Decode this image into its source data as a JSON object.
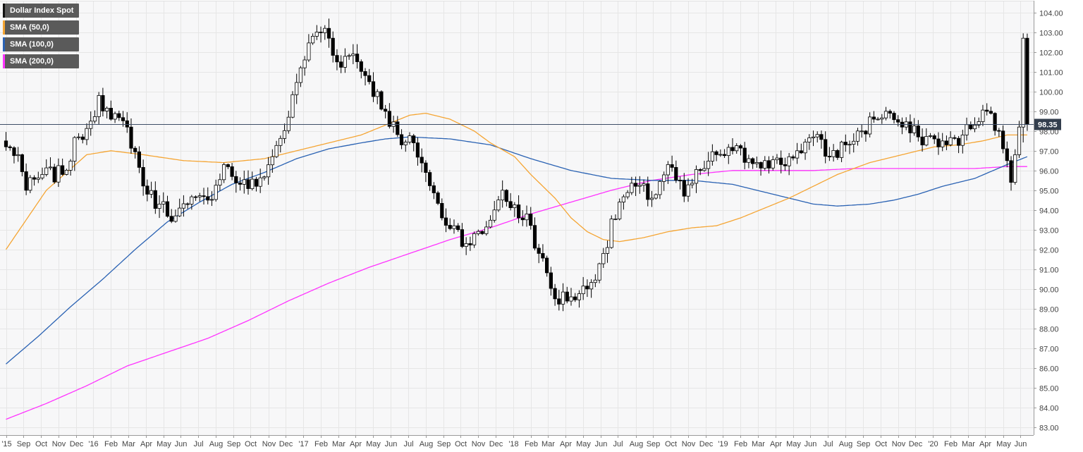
{
  "chart_data": {
    "type": "candlestick",
    "title": "",
    "ylim": [
      82.6,
      104.6
    ],
    "y_ticks": [
      "83.00",
      "84.00",
      "85.00",
      "86.00",
      "87.00",
      "88.00",
      "89.00",
      "90.00",
      "91.00",
      "92.00",
      "93.00",
      "94.00",
      "95.00",
      "96.00",
      "97.00",
      "98.00",
      "99.00",
      "100.00",
      "101.00",
      "102.00",
      "103.00",
      "104.00"
    ],
    "x_tick_labels": [
      "'15",
      "Sep",
      "Oct",
      "Nov",
      "Dec",
      "'16",
      "Feb",
      "Mar",
      "Apr",
      "May",
      "Jun",
      "Jul",
      "Aug",
      "Sep",
      "Oct",
      "Nov",
      "Dec",
      "'17",
      "Feb",
      "Mar",
      "Apr",
      "May",
      "Jun",
      "Jul",
      "Aug",
      "Sep",
      "Oct",
      "Nov",
      "Dec",
      "'18",
      "Feb",
      "Mar",
      "Apr",
      "May",
      "Jun",
      "Jul",
      "Aug",
      "Sep",
      "Oct",
      "Nov",
      "Dec",
      "'19",
      "Feb",
      "Mar",
      "Apr",
      "May",
      "Jun",
      "Jul",
      "Aug",
      "Sep",
      "Oct",
      "Nov",
      "Dec",
      "'20",
      "Feb",
      "Mar",
      "Apr",
      "May",
      "Jun"
    ],
    "x_tick_index": [
      0,
      4.3,
      8.6,
      13,
      17.3,
      21.6,
      26,
      30.3,
      34.6,
      39,
      43.3,
      47.6,
      52,
      56.3,
      60.6,
      65,
      69.3,
      73.6,
      78,
      82.3,
      86.6,
      91,
      95.3,
      99.6,
      104,
      108.3,
      112.6,
      117,
      121.3,
      125.6,
      130,
      134.3,
      138.6,
      143,
      147.3,
      151.6,
      156,
      160.3,
      164.6,
      169,
      173.3,
      177.6,
      182,
      186.3,
      190.6,
      195,
      199.3,
      203.6,
      208,
      212.3,
      216.6,
      221,
      225.3,
      229.6,
      234,
      238.3,
      242.6,
      247,
      251.3
    ],
    "bar_count": 256,
    "current_price": "98.35",
    "current_value": 98.35,
    "colors": {
      "up_fill": "#ffffff",
      "down_fill": "#000000",
      "candle_outline": "#000000",
      "sma50": "#f5a533",
      "sma100": "#2a62b3",
      "sma200": "#ff33ff",
      "price_line": "#3d4d66",
      "price_label_bg": "#333e4d",
      "grid": "#e6e6e6",
      "plot_bg": "#f7f7f8"
    },
    "legend": [
      {
        "label": "Dollar Index Spot",
        "color": "#111111"
      },
      {
        "label": "SMA (50,0)",
        "color": "#f5a533"
      },
      {
        "label": "SMA (100,0)",
        "color": "#2a62b3"
      },
      {
        "label": "SMA (200,0)",
        "color": "#ff33ff"
      }
    ],
    "price_anchors": [
      [
        0,
        97.2
      ],
      [
        3,
        96.8
      ],
      [
        5,
        95.0
      ],
      [
        9,
        95.8
      ],
      [
        14,
        95.8
      ],
      [
        18,
        97.7
      ],
      [
        21,
        98.5
      ],
      [
        23,
        99.8
      ],
      [
        26,
        98.6
      ],
      [
        30,
        98.2
      ],
      [
        35,
        94.8
      ],
      [
        38,
        94.3
      ],
      [
        42,
        93.7
      ],
      [
        45,
        94.3
      ],
      [
        50,
        94.5
      ],
      [
        54,
        96.3
      ],
      [
        58,
        95.3
      ],
      [
        62,
        95.2
      ],
      [
        66,
        96.7
      ],
      [
        70,
        98.7
      ],
      [
        73,
        101.2
      ],
      [
        76,
        102.8
      ],
      [
        79,
        103.2
      ],
      [
        82,
        101.5
      ],
      [
        86,
        101.9
      ],
      [
        90,
        100.5
      ],
      [
        94,
        99.0
      ],
      [
        98,
        97.3
      ],
      [
        101,
        97.4
      ],
      [
        104,
        95.9
      ],
      [
        108,
        93.6
      ],
      [
        111,
        93.2
      ],
      [
        114,
        92.3
      ],
      [
        118,
        92.8
      ],
      [
        121,
        94.0
      ],
      [
        123,
        95.0
      ],
      [
        127,
        93.6
      ],
      [
        129,
        93.8
      ],
      [
        132,
        91.8
      ],
      [
        136,
        89.5
      ],
      [
        140,
        89.6
      ],
      [
        144,
        90.0
      ],
      [
        148,
        91.8
      ],
      [
        152,
        94.4
      ],
      [
        156,
        95.2
      ],
      [
        160,
        94.6
      ],
      [
        164,
        96.3
      ],
      [
        168,
        94.7
      ],
      [
        172,
        96.0
      ],
      [
        176,
        96.8
      ],
      [
        180,
        97.0
      ],
      [
        184,
        96.6
      ],
      [
        188,
        96.5
      ],
      [
        192,
        96.3
      ],
      [
        196,
        97.0
      ],
      [
        200,
        97.7
      ],
      [
        204,
        96.7
      ],
      [
        208,
        97.3
      ],
      [
        212,
        98.0
      ],
      [
        215,
        98.6
      ],
      [
        218,
        99.0
      ],
      [
        222,
        98.2
      ],
      [
        226,
        97.7
      ],
      [
        230,
        97.6
      ],
      [
        233,
        97.3
      ],
      [
        237,
        97.8
      ],
      [
        240,
        98.3
      ],
      [
        243,
        99.0
      ],
      [
        246,
        98.0
      ],
      [
        247,
        97.1
      ],
      [
        248,
        96.5
      ],
      [
        249,
        95.4
      ],
      [
        250,
        96.8
      ],
      [
        251,
        98.2
      ],
      [
        252,
        102.7
      ],
      [
        253,
        98.3
      ]
    ],
    "sma50_anchors": [
      [
        0,
        92.0
      ],
      [
        10,
        95.0
      ],
      [
        20,
        96.8
      ],
      [
        26,
        97.0
      ],
      [
        34,
        96.8
      ],
      [
        44,
        96.5
      ],
      [
        54,
        96.4
      ],
      [
        64,
        96.6
      ],
      [
        72,
        97.0
      ],
      [
        80,
        97.4
      ],
      [
        88,
        97.8
      ],
      [
        94,
        98.3
      ],
      [
        100,
        98.8
      ],
      [
        104,
        98.9
      ],
      [
        110,
        98.6
      ],
      [
        116,
        98.0
      ],
      [
        120,
        97.4
      ],
      [
        126,
        96.7
      ],
      [
        130,
        95.8
      ],
      [
        136,
        94.6
      ],
      [
        140,
        93.6
      ],
      [
        144,
        92.9
      ],
      [
        148,
        92.5
      ],
      [
        152,
        92.4
      ],
      [
        158,
        92.6
      ],
      [
        164,
        92.9
      ],
      [
        170,
        93.1
      ],
      [
        176,
        93.2
      ],
      [
        182,
        93.6
      ],
      [
        188,
        94.1
      ],
      [
        194,
        94.6
      ],
      [
        200,
        95.2
      ],
      [
        206,
        95.8
      ],
      [
        210,
        96.1
      ],
      [
        214,
        96.4
      ],
      [
        220,
        96.7
      ],
      [
        226,
        97.0
      ],
      [
        230,
        97.2
      ],
      [
        236,
        97.3
      ],
      [
        242,
        97.5
      ],
      [
        248,
        97.8
      ],
      [
        253,
        97.8
      ]
    ],
    "sma100_anchors": [
      [
        0,
        86.2
      ],
      [
        8,
        87.6
      ],
      [
        16,
        89.1
      ],
      [
        24,
        90.5
      ],
      [
        32,
        92.0
      ],
      [
        40,
        93.4
      ],
      [
        48,
        94.4
      ],
      [
        56,
        95.3
      ],
      [
        64,
        95.9
      ],
      [
        72,
        96.6
      ],
      [
        80,
        97.1
      ],
      [
        88,
        97.4
      ],
      [
        94,
        97.6
      ],
      [
        100,
        97.7
      ],
      [
        110,
        97.6
      ],
      [
        120,
        97.3
      ],
      [
        130,
        96.6
      ],
      [
        140,
        96.0
      ],
      [
        150,
        95.6
      ],
      [
        160,
        95.5
      ],
      [
        170,
        95.5
      ],
      [
        180,
        95.3
      ],
      [
        190,
        94.8
      ],
      [
        200,
        94.3
      ],
      [
        206,
        94.2
      ],
      [
        214,
        94.3
      ],
      [
        220,
        94.5
      ],
      [
        226,
        94.8
      ],
      [
        232,
        95.2
      ],
      [
        240,
        95.6
      ],
      [
        248,
        96.3
      ],
      [
        253,
        96.7
      ]
    ],
    "sma200_anchors": [
      [
        0,
        83.4
      ],
      [
        10,
        84.2
      ],
      [
        20,
        85.1
      ],
      [
        30,
        86.1
      ],
      [
        40,
        86.8
      ],
      [
        50,
        87.5
      ],
      [
        60,
        88.4
      ],
      [
        70,
        89.4
      ],
      [
        80,
        90.3
      ],
      [
        90,
        91.1
      ],
      [
        100,
        91.8
      ],
      [
        110,
        92.5
      ],
      [
        120,
        93.1
      ],
      [
        130,
        93.8
      ],
      [
        140,
        94.4
      ],
      [
        150,
        95.0
      ],
      [
        160,
        95.5
      ],
      [
        170,
        95.8
      ],
      [
        180,
        96.0
      ],
      [
        190,
        96.0
      ],
      [
        200,
        96.0
      ],
      [
        210,
        96.1
      ],
      [
        220,
        96.1
      ],
      [
        230,
        96.1
      ],
      [
        240,
        96.1
      ],
      [
        248,
        96.2
      ],
      [
        253,
        96.2
      ]
    ]
  }
}
